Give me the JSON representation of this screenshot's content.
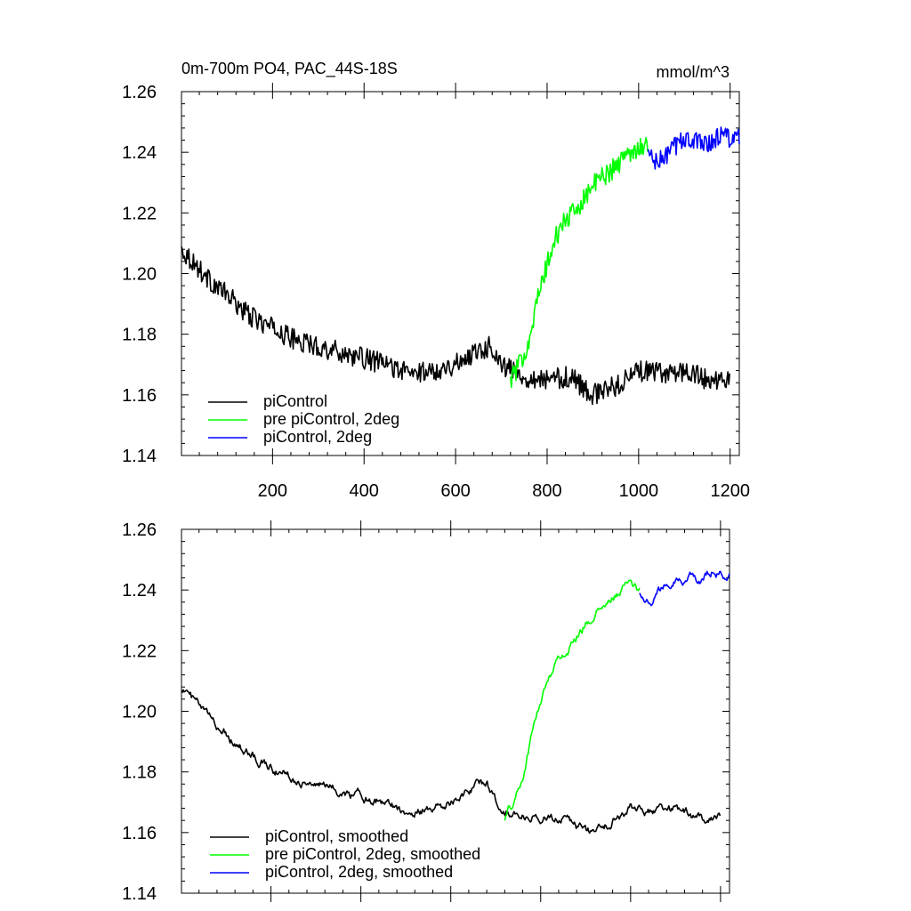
{
  "chart_data": [
    {
      "type": "line",
      "title": "0m-700m PO4, PAC_44S-18S",
      "units": "mmol/m^3",
      "xlim": [
        1,
        1220
      ],
      "ylim": [
        1.14,
        1.26
      ],
      "xticks": [
        200,
        400,
        600,
        800,
        1000,
        1200
      ],
      "yticks": [
        1.14,
        1.16,
        1.18,
        1.2,
        1.22,
        1.24,
        1.26
      ],
      "ytick_labels": [
        "1.14",
        "1.16",
        "1.18",
        "1.20",
        "1.22",
        "1.24",
        "1.26"
      ],
      "xtick_labels": [
        "200",
        "400",
        "600",
        "800",
        "1000",
        "1200"
      ],
      "legend_position": "bottom-left",
      "series": [
        {
          "name": "piControl",
          "color": "#000000",
          "noise": 0.0035,
          "x": [
            1,
            20,
            60,
            100,
            150,
            200,
            250,
            300,
            350,
            400,
            450,
            500,
            550,
            600,
            650,
            680,
            700,
            750,
            800,
            850,
            900,
            950,
            1000,
            1050,
            1100,
            1150,
            1200
          ],
          "y": [
            1.208,
            1.205,
            1.198,
            1.193,
            1.186,
            1.182,
            1.178,
            1.176,
            1.174,
            1.172,
            1.17,
            1.167,
            1.168,
            1.17,
            1.175,
            1.176,
            1.17,
            1.166,
            1.165,
            1.166,
            1.16,
            1.163,
            1.168,
            1.167,
            1.168,
            1.165,
            1.165
          ]
        },
        {
          "name": "pre piControl, 2deg",
          "color": "#00ff00",
          "noise": 0.0035,
          "x": [
            720,
            740,
            760,
            780,
            800,
            820,
            840,
            860,
            880,
            900,
            920,
            940,
            960,
            980,
            1000,
            1020
          ],
          "y": [
            1.165,
            1.17,
            1.178,
            1.192,
            1.203,
            1.212,
            1.218,
            1.22,
            1.225,
            1.229,
            1.232,
            1.234,
            1.237,
            1.24,
            1.242,
            1.242
          ]
        },
        {
          "name": "piControl, 2deg",
          "color": "#0000ff",
          "noise": 0.0035,
          "x": [
            1020,
            1040,
            1060,
            1080,
            1100,
            1120,
            1140,
            1160,
            1180,
            1200,
            1220
          ],
          "y": [
            1.24,
            1.236,
            1.239,
            1.242,
            1.245,
            1.243,
            1.244,
            1.243,
            1.246,
            1.245,
            1.244
          ]
        }
      ]
    },
    {
      "type": "line",
      "title": "",
      "xlim": [
        1,
        1220
      ],
      "ylim": [
        1.14,
        1.26
      ],
      "xticks": [
        200,
        400,
        600,
        800,
        1000,
        1200
      ],
      "yticks": [
        1.14,
        1.16,
        1.18,
        1.2,
        1.22,
        1.24,
        1.26
      ],
      "ytick_labels": [
        "1.14",
        "1.16",
        "1.18",
        "1.20",
        "1.22",
        "1.24",
        "1.26"
      ],
      "legend_position": "bottom-left",
      "series": [
        {
          "name": "piControl, smoothed",
          "color": "#000000",
          "noise": 0.0018,
          "x": [
            1,
            20,
            60,
            100,
            150,
            200,
            250,
            300,
            350,
            400,
            450,
            500,
            550,
            600,
            650,
            680,
            700,
            750,
            800,
            850,
            900,
            950,
            1000,
            1050,
            1100,
            1150,
            1200
          ],
          "y": [
            1.208,
            1.205,
            1.198,
            1.193,
            1.186,
            1.182,
            1.178,
            1.176,
            1.174,
            1.172,
            1.17,
            1.167,
            1.168,
            1.17,
            1.175,
            1.176,
            1.17,
            1.166,
            1.165,
            1.166,
            1.16,
            1.163,
            1.168,
            1.167,
            1.168,
            1.165,
            1.165
          ]
        },
        {
          "name": "pre piControl, 2deg, smoothed",
          "color": "#00ff00",
          "noise": 0.0018,
          "x": [
            720,
            740,
            760,
            780,
            800,
            820,
            840,
            860,
            880,
            900,
            920,
            940,
            960,
            980,
            1000,
            1020
          ],
          "y": [
            1.165,
            1.17,
            1.178,
            1.192,
            1.203,
            1.212,
            1.218,
            1.22,
            1.225,
            1.229,
            1.232,
            1.234,
            1.237,
            1.24,
            1.242,
            1.24
          ]
        },
        {
          "name": "piControl, 2deg, smoothed",
          "color": "#0000ff",
          "noise": 0.0018,
          "x": [
            1020,
            1040,
            1060,
            1080,
            1100,
            1120,
            1140,
            1160,
            1180,
            1200,
            1220
          ],
          "y": [
            1.24,
            1.236,
            1.239,
            1.242,
            1.245,
            1.243,
            1.244,
            1.243,
            1.246,
            1.245,
            1.244
          ]
        }
      ]
    }
  ]
}
